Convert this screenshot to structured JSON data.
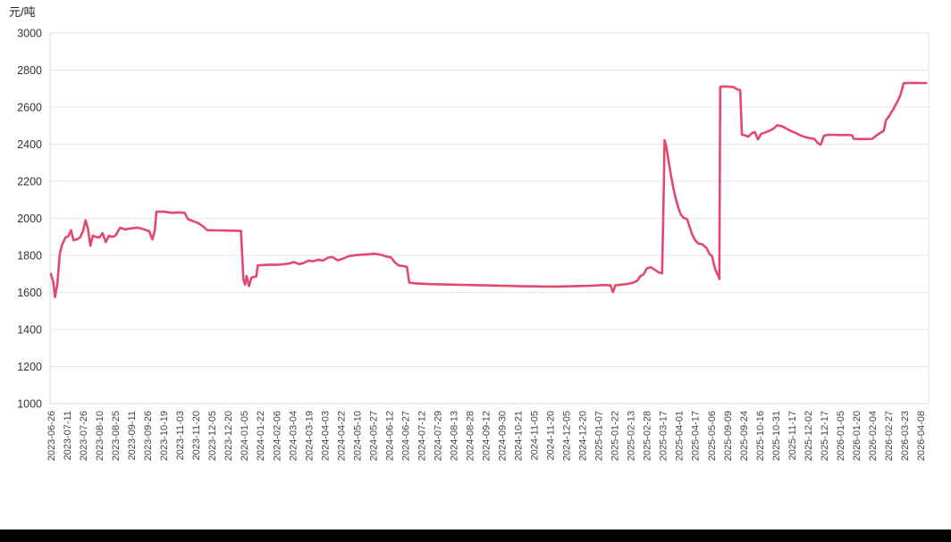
{
  "page": {
    "unit_label": "元/吨",
    "background": "#ffffff",
    "footer_bar_color": "#000000"
  },
  "chart_data": {
    "type": "line",
    "title": "",
    "xlabel": "",
    "ylabel": "元/吨",
    "ylim": [
      1000,
      3000
    ],
    "yticks": [
      3000,
      2800,
      2600,
      2400,
      2200,
      2000,
      1800,
      1600,
      1400,
      1200,
      1000
    ],
    "grid": "horizontal-only",
    "legend_position": "none",
    "x_label_rotation": -90,
    "line_color": "#e5486e",
    "grid_color": "#e6e6e6",
    "axis_color": "#d9d9d9",
    "tick_label_color": "#444444",
    "categories": [
      "2023-06-26",
      "2023-07-11",
      "2023-07-26",
      "2023-08-10",
      "2023-08-25",
      "2023-09-11",
      "2023-09-26",
      "2023-10-19",
      "2023-11-03",
      "2023-11-20",
      "2023-12-05",
      "2023-12-20",
      "2024-01-05",
      "2024-01-22",
      "2024-02-06",
      "2024-03-04",
      "2024-03-19",
      "2024-04-03",
      "2024-04-22",
      "2024-05-10",
      "2024-05-27",
      "2024-06-12",
      "2024-06-27",
      "2024-07-12",
      "2024-07-29",
      "2024-08-13",
      "2024-08-28",
      "2024-09-12",
      "2024-09-30",
      "2024-10-21",
      "2024-11-05",
      "2024-11-20",
      "2024-12-05",
      "2024-12-20",
      "2025-01-07",
      "2025-01-22",
      "2025-02-13",
      "2025-02-28",
      "2025-03-17",
      "2025-04-01",
      "2025-04-17",
      "2025-05-06",
      "2025-09-09",
      "2025-09-24",
      "2025-10-16",
      "2025-10-31",
      "2025-11-17",
      "2025-12-02",
      "2025-12-17",
      "2026-01-05",
      "2026-01-20",
      "2026-02-04",
      "2026-02-27",
      "2026-03-23",
      "2026-04-08"
    ],
    "series": [
      {
        "name": "",
        "color": "#e5486e",
        "points": [
          [
            0,
            1700
          ],
          [
            0.15,
            1655
          ],
          [
            0.25,
            1575
          ],
          [
            0.4,
            1645
          ],
          [
            0.55,
            1810
          ],
          [
            0.7,
            1858
          ],
          [
            0.9,
            1896
          ],
          [
            1.1,
            1905
          ],
          [
            1.25,
            1936
          ],
          [
            1.4,
            1882
          ],
          [
            1.6,
            1886
          ],
          [
            1.8,
            1896
          ],
          [
            2.0,
            1932
          ],
          [
            2.15,
            1990
          ],
          [
            2.3,
            1944
          ],
          [
            2.45,
            1852
          ],
          [
            2.6,
            1906
          ],
          [
            2.8,
            1900
          ],
          [
            3.0,
            1896
          ],
          [
            3.2,
            1920
          ],
          [
            3.4,
            1872
          ],
          [
            3.6,
            1906
          ],
          [
            3.8,
            1900
          ],
          [
            4.0,
            1906
          ],
          [
            4.3,
            1950
          ],
          [
            4.6,
            1940
          ],
          [
            5.0,
            1946
          ],
          [
            5.4,
            1950
          ],
          [
            5.8,
            1940
          ],
          [
            6.1,
            1930
          ],
          [
            6.3,
            1886
          ],
          [
            6.45,
            1936
          ],
          [
            6.55,
            2035
          ],
          [
            7.0,
            2036
          ],
          [
            7.5,
            2030
          ],
          [
            8.0,
            2032
          ],
          [
            8.3,
            2030
          ],
          [
            8.5,
            1996
          ],
          [
            8.8,
            1986
          ],
          [
            9.1,
            1976
          ],
          [
            9.4,
            1960
          ],
          [
            9.7,
            1936
          ],
          [
            10.2,
            1935
          ],
          [
            10.8,
            1934
          ],
          [
            11.4,
            1933
          ],
          [
            11.8,
            1932
          ],
          [
            11.95,
            1672
          ],
          [
            12.05,
            1642
          ],
          [
            12.15,
            1688
          ],
          [
            12.3,
            1634
          ],
          [
            12.45,
            1680
          ],
          [
            12.6,
            1684
          ],
          [
            12.75,
            1686
          ],
          [
            12.85,
            1746
          ],
          [
            13.2,
            1748
          ],
          [
            13.6,
            1750
          ],
          [
            14.0,
            1749
          ],
          [
            14.4,
            1752
          ],
          [
            14.8,
            1756
          ],
          [
            15.1,
            1764
          ],
          [
            15.4,
            1753
          ],
          [
            15.7,
            1759
          ],
          [
            16.0,
            1772
          ],
          [
            16.3,
            1768
          ],
          [
            16.6,
            1777
          ],
          [
            16.9,
            1772
          ],
          [
            17.2,
            1788
          ],
          [
            17.5,
            1791
          ],
          [
            17.8,
            1773
          ],
          [
            18.1,
            1781
          ],
          [
            18.5,
            1796
          ],
          [
            18.9,
            1801
          ],
          [
            19.3,
            1804
          ],
          [
            19.7,
            1806
          ],
          [
            20.1,
            1809
          ],
          [
            20.5,
            1803
          ],
          [
            20.8,
            1794
          ],
          [
            21.1,
            1790
          ],
          [
            21.35,
            1763
          ],
          [
            21.6,
            1745
          ],
          [
            21.9,
            1742
          ],
          [
            22.1,
            1738
          ],
          [
            22.25,
            1653
          ],
          [
            22.6,
            1649
          ],
          [
            23.0,
            1647
          ],
          [
            23.5,
            1645
          ],
          [
            24.0,
            1644
          ],
          [
            24.5,
            1643
          ],
          [
            25.0,
            1642
          ],
          [
            25.5,
            1641
          ],
          [
            26.0,
            1640
          ],
          [
            26.5,
            1639
          ],
          [
            27.0,
            1638
          ],
          [
            27.5,
            1637
          ],
          [
            28.0,
            1636
          ],
          [
            28.5,
            1635
          ],
          [
            29.0,
            1634
          ],
          [
            29.5,
            1633
          ],
          [
            30.0,
            1633
          ],
          [
            30.5,
            1632
          ],
          [
            31.0,
            1632
          ],
          [
            31.5,
            1632
          ],
          [
            32.0,
            1633
          ],
          [
            32.5,
            1634
          ],
          [
            33.0,
            1635
          ],
          [
            33.5,
            1636
          ],
          [
            34.0,
            1638
          ],
          [
            34.4,
            1640
          ],
          [
            34.75,
            1638
          ],
          [
            34.9,
            1602
          ],
          [
            35.05,
            1638
          ],
          [
            35.4,
            1642
          ],
          [
            35.8,
            1646
          ],
          [
            36.1,
            1651
          ],
          [
            36.4,
            1662
          ],
          [
            36.6,
            1688
          ],
          [
            36.8,
            1698
          ],
          [
            37.0,
            1730
          ],
          [
            37.25,
            1736
          ],
          [
            37.5,
            1722
          ],
          [
            37.75,
            1708
          ],
          [
            37.95,
            1703
          ],
          [
            38.05,
            2150
          ],
          [
            38.1,
            2422
          ],
          [
            38.2,
            2392
          ],
          [
            38.35,
            2312
          ],
          [
            38.5,
            2232
          ],
          [
            38.65,
            2162
          ],
          [
            38.8,
            2106
          ],
          [
            38.95,
            2060
          ],
          [
            39.1,
            2022
          ],
          [
            39.3,
            2002
          ],
          [
            39.5,
            1996
          ],
          [
            39.65,
            1956
          ],
          [
            39.8,
            1916
          ],
          [
            40.0,
            1882
          ],
          [
            40.2,
            1864
          ],
          [
            40.45,
            1860
          ],
          [
            40.7,
            1840
          ],
          [
            40.9,
            1806
          ],
          [
            41.05,
            1796
          ],
          [
            41.15,
            1756
          ],
          [
            41.25,
            1724
          ],
          [
            41.35,
            1704
          ],
          [
            41.45,
            1688
          ],
          [
            41.5,
            1672
          ],
          [
            41.56,
            2710
          ],
          [
            41.8,
            2712
          ],
          [
            42.1,
            2711
          ],
          [
            42.4,
            2708
          ],
          [
            42.6,
            2696
          ],
          [
            42.8,
            2692
          ],
          [
            42.9,
            2452
          ],
          [
            43.1,
            2448
          ],
          [
            43.3,
            2441
          ],
          [
            43.5,
            2458
          ],
          [
            43.7,
            2466
          ],
          [
            43.9,
            2426
          ],
          [
            44.1,
            2456
          ],
          [
            44.35,
            2463
          ],
          [
            44.6,
            2472
          ],
          [
            44.85,
            2483
          ],
          [
            45.1,
            2502
          ],
          [
            45.35,
            2498
          ],
          [
            45.6,
            2488
          ],
          [
            45.9,
            2473
          ],
          [
            46.2,
            2462
          ],
          [
            46.5,
            2449
          ],
          [
            46.8,
            2439
          ],
          [
            47.1,
            2433
          ],
          [
            47.4,
            2429
          ],
          [
            47.65,
            2403
          ],
          [
            47.8,
            2398
          ],
          [
            48.0,
            2446
          ],
          [
            48.3,
            2451
          ],
          [
            48.7,
            2450
          ],
          [
            49.1,
            2449
          ],
          [
            49.5,
            2450
          ],
          [
            49.75,
            2448
          ],
          [
            49.85,
            2429
          ],
          [
            50.2,
            2428
          ],
          [
            50.6,
            2428
          ],
          [
            51.0,
            2429
          ],
          [
            51.2,
            2443
          ],
          [
            51.45,
            2459
          ],
          [
            51.7,
            2471
          ],
          [
            51.85,
            2529
          ],
          [
            52.05,
            2553
          ],
          [
            52.3,
            2589
          ],
          [
            52.55,
            2629
          ],
          [
            52.75,
            2666
          ],
          [
            52.95,
            2729
          ],
          [
            53.2,
            2730
          ],
          [
            53.6,
            2731
          ],
          [
            54.0,
            2730
          ],
          [
            54.35,
            2730
          ]
        ]
      }
    ]
  }
}
